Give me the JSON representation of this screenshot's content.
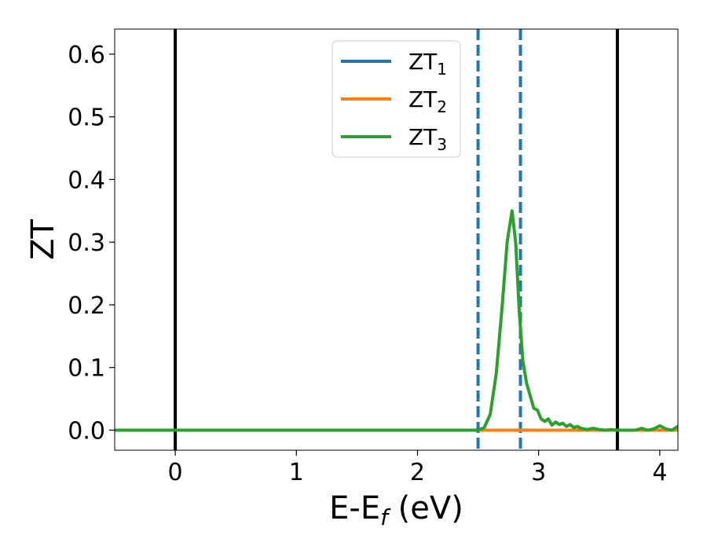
{
  "chart_data": {
    "type": "line",
    "title": "",
    "xlabel": "E-E",
    "xlabel_sub": "f",
    "xlabel_unit": " (eV)",
    "ylabel": "ZT",
    "xlim": [
      -0.5,
      4.15
    ],
    "ylim": [
      -0.032,
      0.64
    ],
    "xticks": [
      0,
      1,
      2,
      3,
      4
    ],
    "xtick_labels": [
      "0",
      "1",
      "2",
      "3",
      "4"
    ],
    "yticks": [
      0.0,
      0.1,
      0.2,
      0.3,
      0.4,
      0.5,
      0.6
    ],
    "ytick_labels": [
      "0.0",
      "0.1",
      "0.2",
      "0.3",
      "0.4",
      "0.5",
      "0.6"
    ],
    "grid": false,
    "legend_position": "top-center",
    "vertical_lines": [
      {
        "x": 0.0,
        "style": "solid",
        "color": "#000000"
      },
      {
        "x": 3.65,
        "style": "solid",
        "color": "#000000"
      },
      {
        "x": 2.5,
        "style": "dashed",
        "color": "#1f77b4"
      },
      {
        "x": 2.85,
        "style": "dashed",
        "color": "#1f77b4"
      }
    ],
    "series": [
      {
        "name": "ZT",
        "name_sub": "1",
        "color": "#1f77b4",
        "x": [
          -0.5,
          4.15
        ],
        "y": [
          0.0,
          0.0
        ]
      },
      {
        "name": "ZT",
        "name_sub": "2",
        "color": "#ff7f0e",
        "x": [
          -0.5,
          4.15
        ],
        "y": [
          0.0,
          0.0
        ]
      },
      {
        "name": "ZT",
        "name_sub": "3",
        "color": "#2ca02c",
        "x": [
          -0.5,
          2.5,
          2.55,
          2.6,
          2.65,
          2.7,
          2.74,
          2.78,
          2.81,
          2.84,
          2.87,
          2.9,
          2.93,
          2.96,
          2.99,
          3.02,
          3.05,
          3.08,
          3.11,
          3.14,
          3.17,
          3.2,
          3.23,
          3.26,
          3.29,
          3.32,
          3.35,
          3.4,
          3.45,
          3.5,
          3.55,
          3.6,
          3.65,
          3.7,
          3.75,
          3.8,
          3.85,
          3.9,
          3.95,
          4.0,
          4.05,
          4.1,
          4.15
        ],
        "y": [
          0.0,
          0.0,
          0.004,
          0.025,
          0.09,
          0.2,
          0.3,
          0.35,
          0.3,
          0.19,
          0.11,
          0.075,
          0.055,
          0.035,
          0.032,
          0.018,
          0.014,
          0.018,
          0.008,
          0.013,
          0.009,
          0.011,
          0.006,
          0.009,
          0.004,
          0.006,
          0.003,
          0.001,
          0.003,
          0.001,
          0.0,
          0.001,
          0.0,
          0.0,
          0.0,
          0.0,
          0.003,
          0.0,
          0.002,
          0.007,
          0.002,
          0.0,
          0.006
        ]
      }
    ]
  }
}
